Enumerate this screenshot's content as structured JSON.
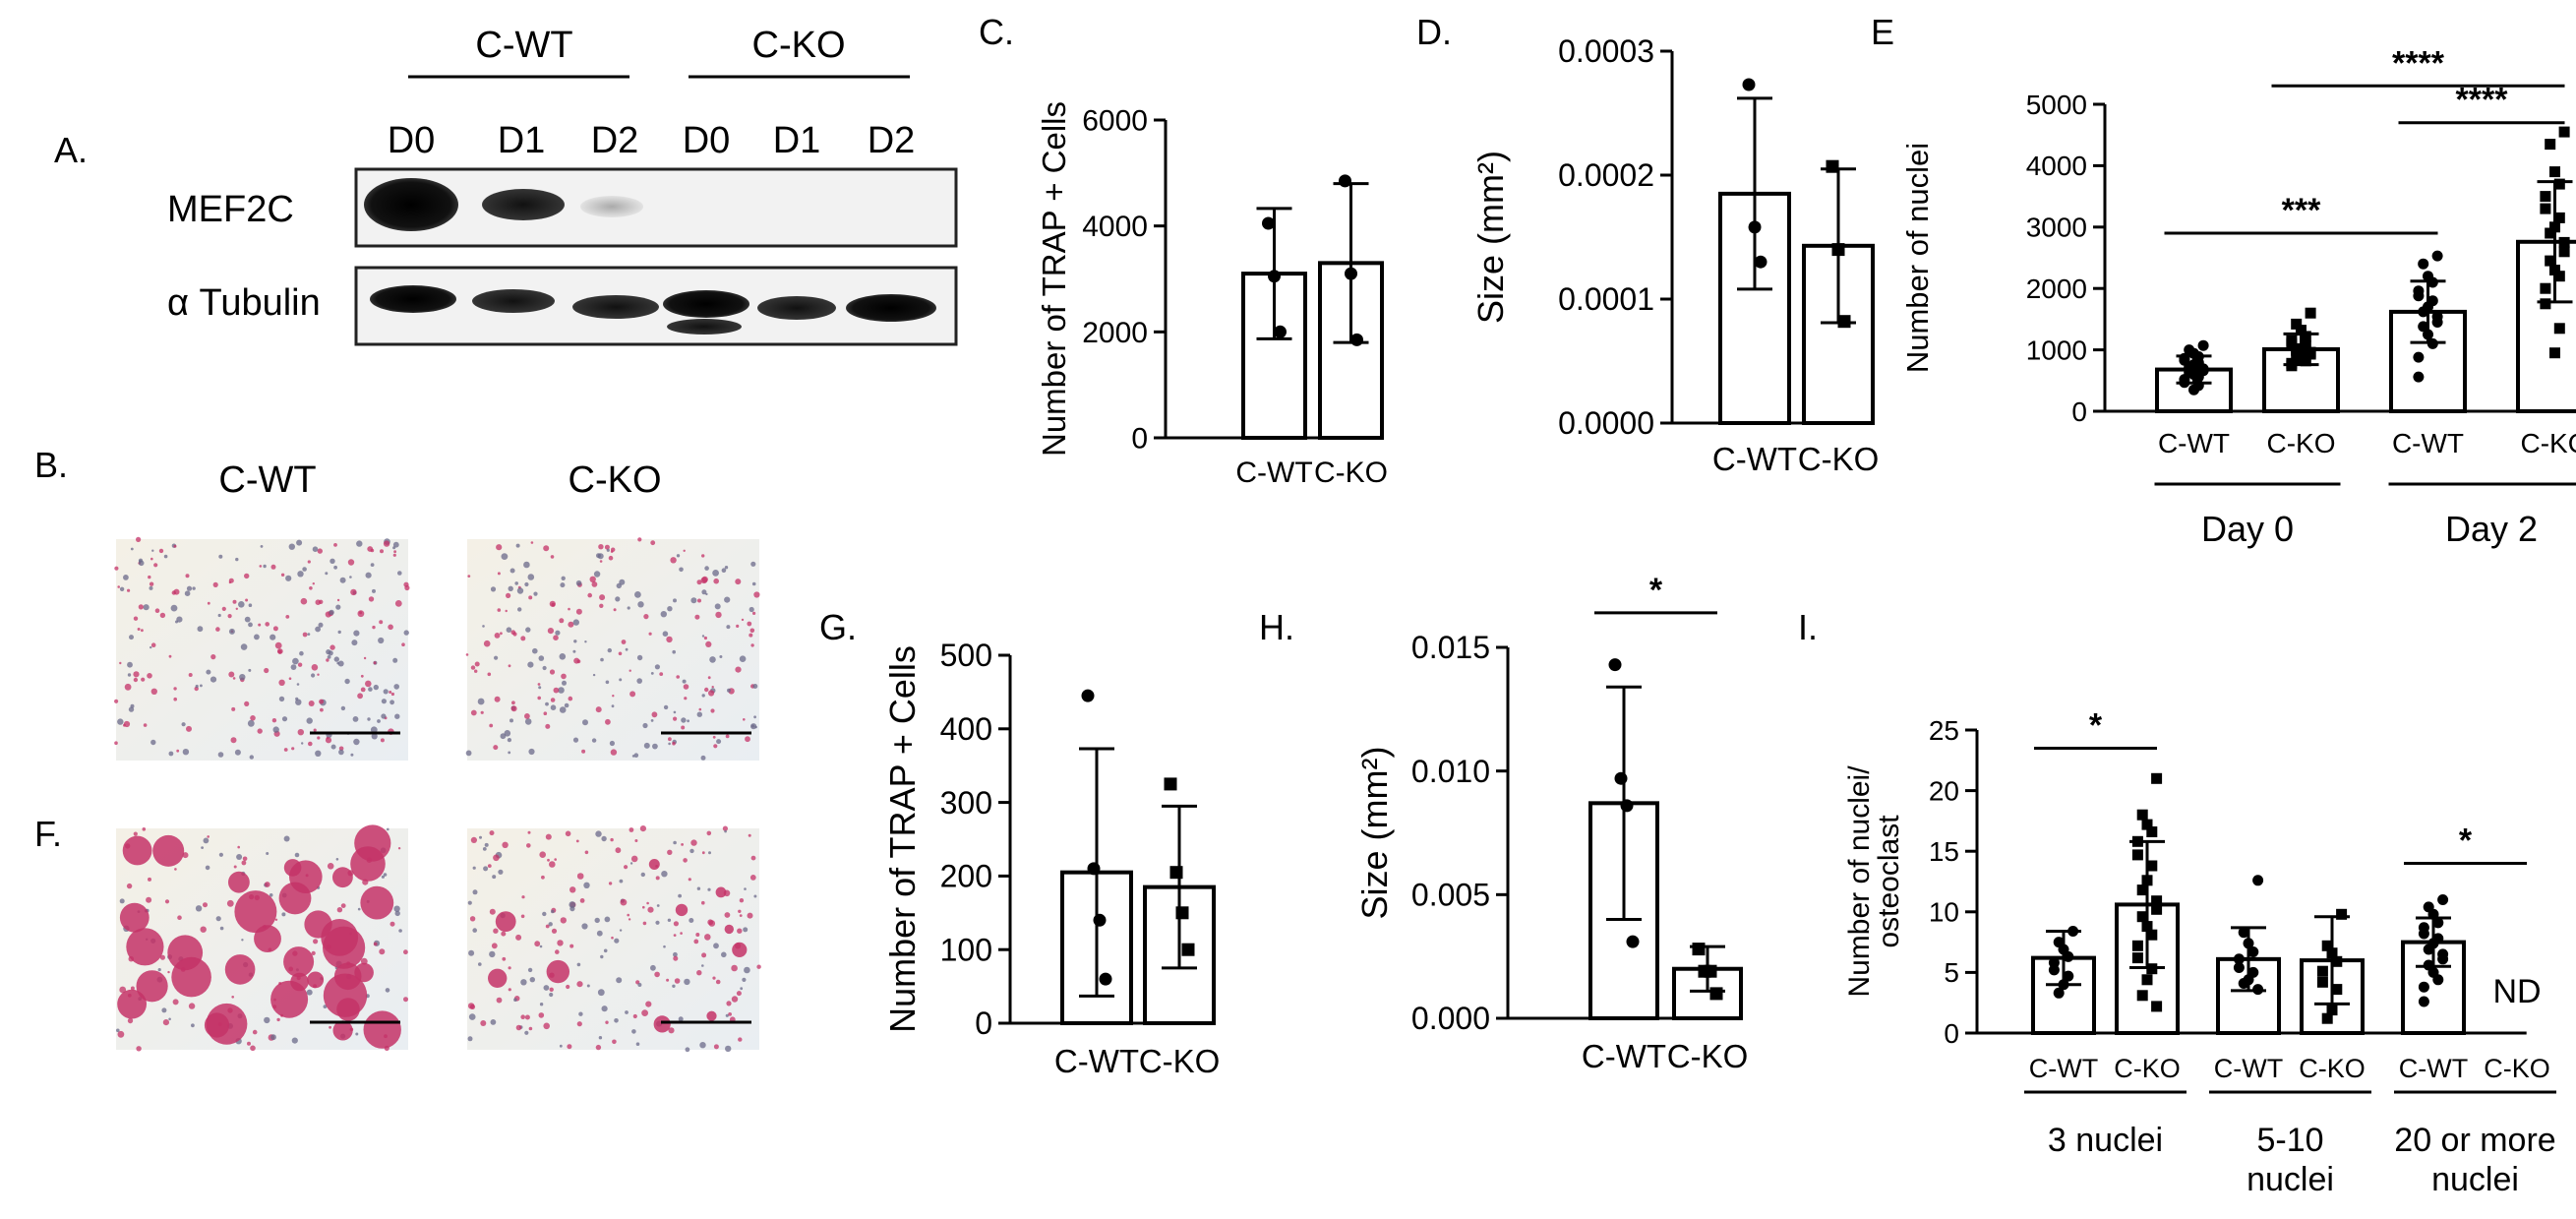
{
  "panel_labels": {
    "A": "A.",
    "B": "B.",
    "C": "C.",
    "D": "D.",
    "E": "E",
    "F": "F.",
    "G": "G.",
    "H": "H.",
    "I": "I."
  },
  "blot": {
    "groups": [
      "C-WT",
      "C-KO"
    ],
    "lanes": [
      "D0",
      "D1",
      "D2",
      "D0",
      "D1",
      "D2"
    ],
    "rows": [
      "MEF2C",
      "α Tubulin"
    ]
  },
  "micro": {
    "col_labels": [
      "C-WT",
      "C-KO"
    ]
  },
  "colors": {
    "stain": "#c43267",
    "bg": "#f3efe6"
  },
  "chart_data": [
    {
      "id": "C",
      "type": "bar",
      "categories": [
        "C-WT",
        "C-KO"
      ],
      "values": [
        3100,
        3300
      ],
      "errors": [
        1230,
        1500
      ],
      "points": [
        [
          4050,
          3050,
          2000
        ],
        [
          4850,
          3100,
          1850
        ]
      ],
      "markers": [
        "circle",
        "circle"
      ],
      "ylabel": "Number of TRAP + Cells",
      "ylim": [
        0,
        6000
      ],
      "yticks": [
        "0",
        "2000",
        "4000",
        "6000"
      ],
      "sig": []
    },
    {
      "id": "D",
      "type": "bar",
      "categories": [
        "C-WT",
        "C-KO"
      ],
      "values": [
        0.000185,
        0.000143
      ],
      "errors": [
        7.7e-05,
        6.2e-05
      ],
      "points": [
        [
          0.000273,
          0.000158,
          0.00013
        ],
        [
          0.000207,
          0.00014,
          8.2e-05
        ]
      ],
      "markers": [
        "circle",
        "square"
      ],
      "ylabel": "Size (mm²)",
      "ylim": [
        0,
        0.0003
      ],
      "yticks": [
        "0.0000",
        "0.0001",
        "0.0002",
        "0.0003"
      ],
      "sig": []
    },
    {
      "id": "E",
      "type": "bar",
      "categories": [
        "C-WT",
        "C-KO",
        "C-WT",
        "C-KO"
      ],
      "values": [
        680,
        1010,
        1620,
        2760
      ],
      "errors": [
        220,
        250,
        500,
        980
      ],
      "points": [
        [
          1070,
          1000,
          940,
          890,
          860,
          830,
          790,
          760,
          720,
          690,
          660,
          630,
          600,
          560,
          520,
          470,
          420,
          350
        ],
        [
          1600,
          1420,
          1320,
          1220,
          1150,
          1100,
          1060,
          1020,
          990,
          960,
          930,
          900,
          860,
          820,
          780,
          740
        ],
        [
          2530,
          2400,
          2200,
          2100,
          1960,
          1880,
          1800,
          1700,
          1620,
          1540,
          1450,
          1380,
          1250,
          1100,
          880,
          560
        ],
        [
          4550,
          4350,
          3900,
          3700,
          3500,
          3300,
          3150,
          3000,
          2900,
          2750,
          2600,
          2450,
          2300,
          2200,
          2000,
          1750,
          1350,
          950
        ]
      ],
      "markers": [
        "circle",
        "square",
        "circle",
        "square"
      ],
      "ylabel": "Number of nuclei",
      "ylim": [
        0,
        5000
      ],
      "yticks": [
        "0",
        "1000",
        "2000",
        "3000",
        "4000",
        "5000"
      ],
      "groups": [
        {
          "label": "Day 0",
          "span": [
            0,
            1
          ]
        },
        {
          "label": "Day 2",
          "span": [
            2,
            3
          ]
        }
      ],
      "sig": [
        {
          "from": 0,
          "to": 2,
          "y": 2900,
          "label": "***"
        },
        {
          "from": 1,
          "to": 3,
          "y": 5300,
          "label": "****"
        },
        {
          "from": 2,
          "to": 3,
          "y": 4700,
          "label": "****"
        }
      ]
    },
    {
      "id": "G",
      "type": "bar",
      "categories": [
        "C-WT",
        "C-KO"
      ],
      "values": [
        205,
        185
      ],
      "errors": [
        168,
        110
      ],
      "points": [
        [
          445,
          210,
          140,
          60
        ],
        [
          325,
          205,
          150,
          100
        ]
      ],
      "markers": [
        "circle",
        "square"
      ],
      "ylabel": "Number of TRAP + Cells",
      "ylim": [
        0,
        500
      ],
      "yticks": [
        "0",
        "100",
        "200",
        "300",
        "400",
        "500"
      ],
      "sig": []
    },
    {
      "id": "H",
      "type": "bar",
      "categories": [
        "C-WT",
        "C-KO"
      ],
      "values": [
        0.0087,
        0.002
      ],
      "errors": [
        0.0047,
        0.0009
      ],
      "points": [
        [
          0.0143,
          0.0097,
          0.0086,
          0.0031
        ],
        [
          0.0028,
          0.0019,
          0.0019,
          0.001
        ]
      ],
      "markers": [
        "circle",
        "square"
      ],
      "ylabel": "Size (mm²)",
      "ylim": [
        0,
        0.015
      ],
      "yticks": [
        "0.000",
        "0.005",
        "0.010",
        "0.015"
      ],
      "sig": [
        {
          "from": 0,
          "to": 1,
          "y": 0.0164,
          "label": "*"
        }
      ]
    },
    {
      "id": "I",
      "type": "bar",
      "categories": [
        "C-WT",
        "C-KO",
        "C-WT",
        "C-KO",
        "C-WT",
        "C-KO"
      ],
      "values": [
        6.2,
        10.6,
        6.1,
        6.0,
        7.5,
        0
      ],
      "errors": [
        2.2,
        5.2,
        2.6,
        3.6,
        2.0,
        0
      ],
      "points": [
        [
          8.4,
          7.5,
          6.9,
          6.3,
          5.8,
          5.2,
          4.7,
          4.0,
          3.3
        ],
        [
          21,
          18,
          17.2,
          16.6,
          15.8,
          14.7,
          13.8,
          12.6,
          11.8,
          10.9,
          10.2,
          9.6,
          8.8,
          8.1,
          7.2,
          6.2,
          5.3,
          4.4,
          3.1,
          2.2
        ],
        [
          12.6,
          8.3,
          7.4,
          6.7,
          6.1,
          5.4,
          5.0,
          4.4,
          4.1,
          3.6
        ],
        [
          9.8,
          7.2,
          6.6,
          5.9,
          5.1,
          4.2,
          3.6,
          1.9,
          1.2
        ],
        [
          11,
          10.4,
          9.8,
          9.1,
          8.7,
          8.2,
          7.8,
          7.4,
          6.9,
          6.5,
          6.1,
          5.6,
          5.0,
          4.4,
          3.8,
          2.6
        ],
        []
      ],
      "markers": [
        "circle",
        "square",
        "circle",
        "square",
        "circle",
        "square"
      ],
      "ylabel_lines": [
        "Number of nuclei/",
        "osteoclast"
      ],
      "ylim": [
        0,
        25
      ],
      "yticks": [
        "0",
        "5",
        "10",
        "15",
        "20",
        "25"
      ],
      "groups": [
        {
          "label": "3 nuclei",
          "span": [
            0,
            1
          ]
        },
        {
          "label": "5-10 nuclei",
          "span": [
            2,
            3
          ]
        },
        {
          "label": "20 or more nuclei",
          "span": [
            4,
            5
          ]
        }
      ],
      "nd": {
        "index": 5,
        "label": "ND"
      },
      "sig": [
        {
          "from": 0,
          "to": 1,
          "y": 23.5,
          "label": "*"
        },
        {
          "from": 4,
          "to": 5,
          "y": 14,
          "label": "*"
        }
      ]
    }
  ]
}
